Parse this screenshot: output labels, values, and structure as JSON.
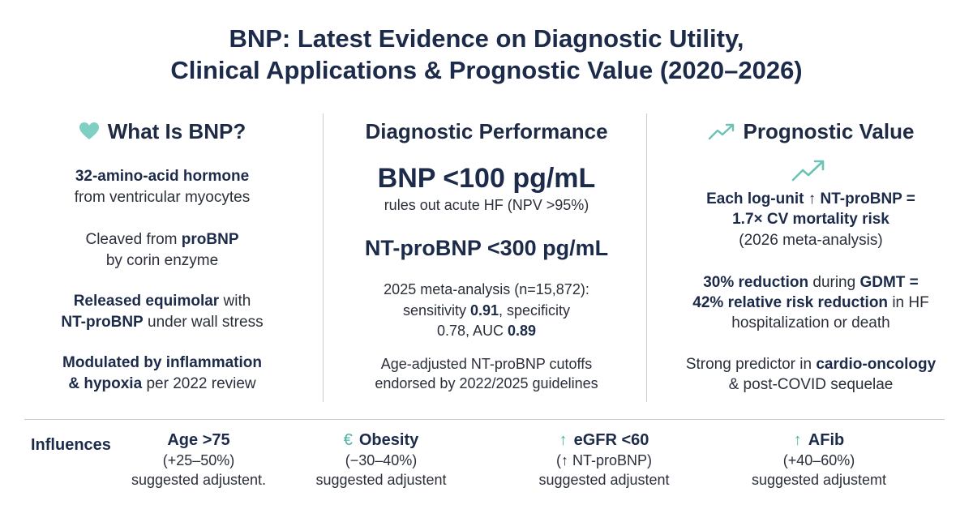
{
  "title": [
    "BNP: Latest Evidence on Diagnostic Utility,",
    "Clinical Applications & Prognostic Value (2020–2026)"
  ],
  "columns": [
    {
      "heading": "What Is BNP?",
      "blocks": [
        {
          "lines": [
            [
              {
                "text": "32-amino-acid hormone",
                "bold": true
              }
            ],
            [
              {
                "text": "from ventricular myocytes"
              }
            ]
          ]
        },
        {
          "lines": [
            [
              {
                "text": "Cleaved from "
              },
              {
                "text": "proBNP",
                "bold": true
              }
            ],
            [
              {
                "text": "by corin enzyme"
              }
            ]
          ]
        },
        {
          "lines": [
            [
              {
                "text": "Released equimolar",
                "bold": true
              },
              {
                "text": " with"
              }
            ],
            [
              {
                "text": "NT-proBNP",
                "bold": true
              },
              {
                "text": " under wall stress"
              }
            ]
          ]
        },
        {
          "lines": [
            [
              {
                "text": "Modulated by inflammation",
                "bold": true
              }
            ],
            [
              {
                "text": "& hypoxia",
                "bold": true
              },
              {
                "text": " per 2022 review"
              }
            ]
          ]
        }
      ]
    },
    {
      "heading": "Diagnostic Performance",
      "blocks": [
        {
          "lines": [
            [
              {
                "text": "BNP <100 pg/mL",
                "bold": true
              }
            ],
            [
              {
                "text": "rules out acute HF (NPV >95%)"
              }
            ]
          ]
        },
        {
          "lines": [
            [
              {
                "text": "NT-proBNP <300 pg/mL",
                "bold": true
              }
            ]
          ]
        },
        {
          "lines": [
            [
              {
                "text": "2025 meta-analysis (n=15,872):"
              }
            ],
            [
              {
                "text": "sensitivity "
              },
              {
                "text": "0.91",
                "bold": true
              },
              {
                "text": ", specificity"
              }
            ],
            [
              {
                "text": "0.78, AUC "
              },
              {
                "text": "0.89",
                "bold": true
              }
            ]
          ]
        },
        {
          "lines": [
            [
              {
                "text": "Age-adjusted NT-proBNP cutoffs"
              }
            ],
            [
              {
                "text": "endorsed by 2022/2025 guidelines"
              }
            ]
          ]
        }
      ]
    },
    {
      "heading": "Prognostic Value",
      "blocks": [
        {
          "lines": [
            [
              {
                "text": "Each log-unit ↑ NT-proBNP =",
                "bold": true
              }
            ],
            [
              {
                "text": "1.7× CV mortality risk",
                "bold": true
              }
            ],
            [
              {
                "text": "(2026 meta-analysis)"
              }
            ]
          ]
        },
        {
          "lines": [
            [
              {
                "text": "30% reduction",
                "bold": true
              },
              {
                "text": " during "
              },
              {
                "text": "GDMT =",
                "bold": true
              }
            ],
            [
              {
                "text": "42% relative risk reduction",
                "bold": true
              },
              {
                "text": " in HF"
              }
            ],
            [
              {
                "text": "hospitalization or death"
              }
            ]
          ]
        },
        {
          "lines": [
            [
              {
                "text": "Strong predictor in "
              },
              {
                "text": "cardio-oncology",
                "bold": true
              }
            ],
            [
              {
                "text": "& post-COVID sequelae"
              }
            ]
          ]
        }
      ]
    }
  ],
  "influences": {
    "label": "Influences",
    "items": [
      {
        "name": "Age >75",
        "effect": "(+25–50%)",
        "note": "suggested adjustent."
      },
      {
        "icon": "€",
        "name": "Obesity",
        "effect": "(−30–40%)",
        "note": "suggested adjustent"
      },
      {
        "icon": "↑",
        "name": "eGFR <60",
        "effect": "(↑ NT-proBNP)",
        "note": "suggested adjustent"
      },
      {
        "icon": "↑",
        "name": "AFib",
        "effect": "(+40–60%)",
        "note": "suggested adjustemt"
      }
    ]
  }
}
